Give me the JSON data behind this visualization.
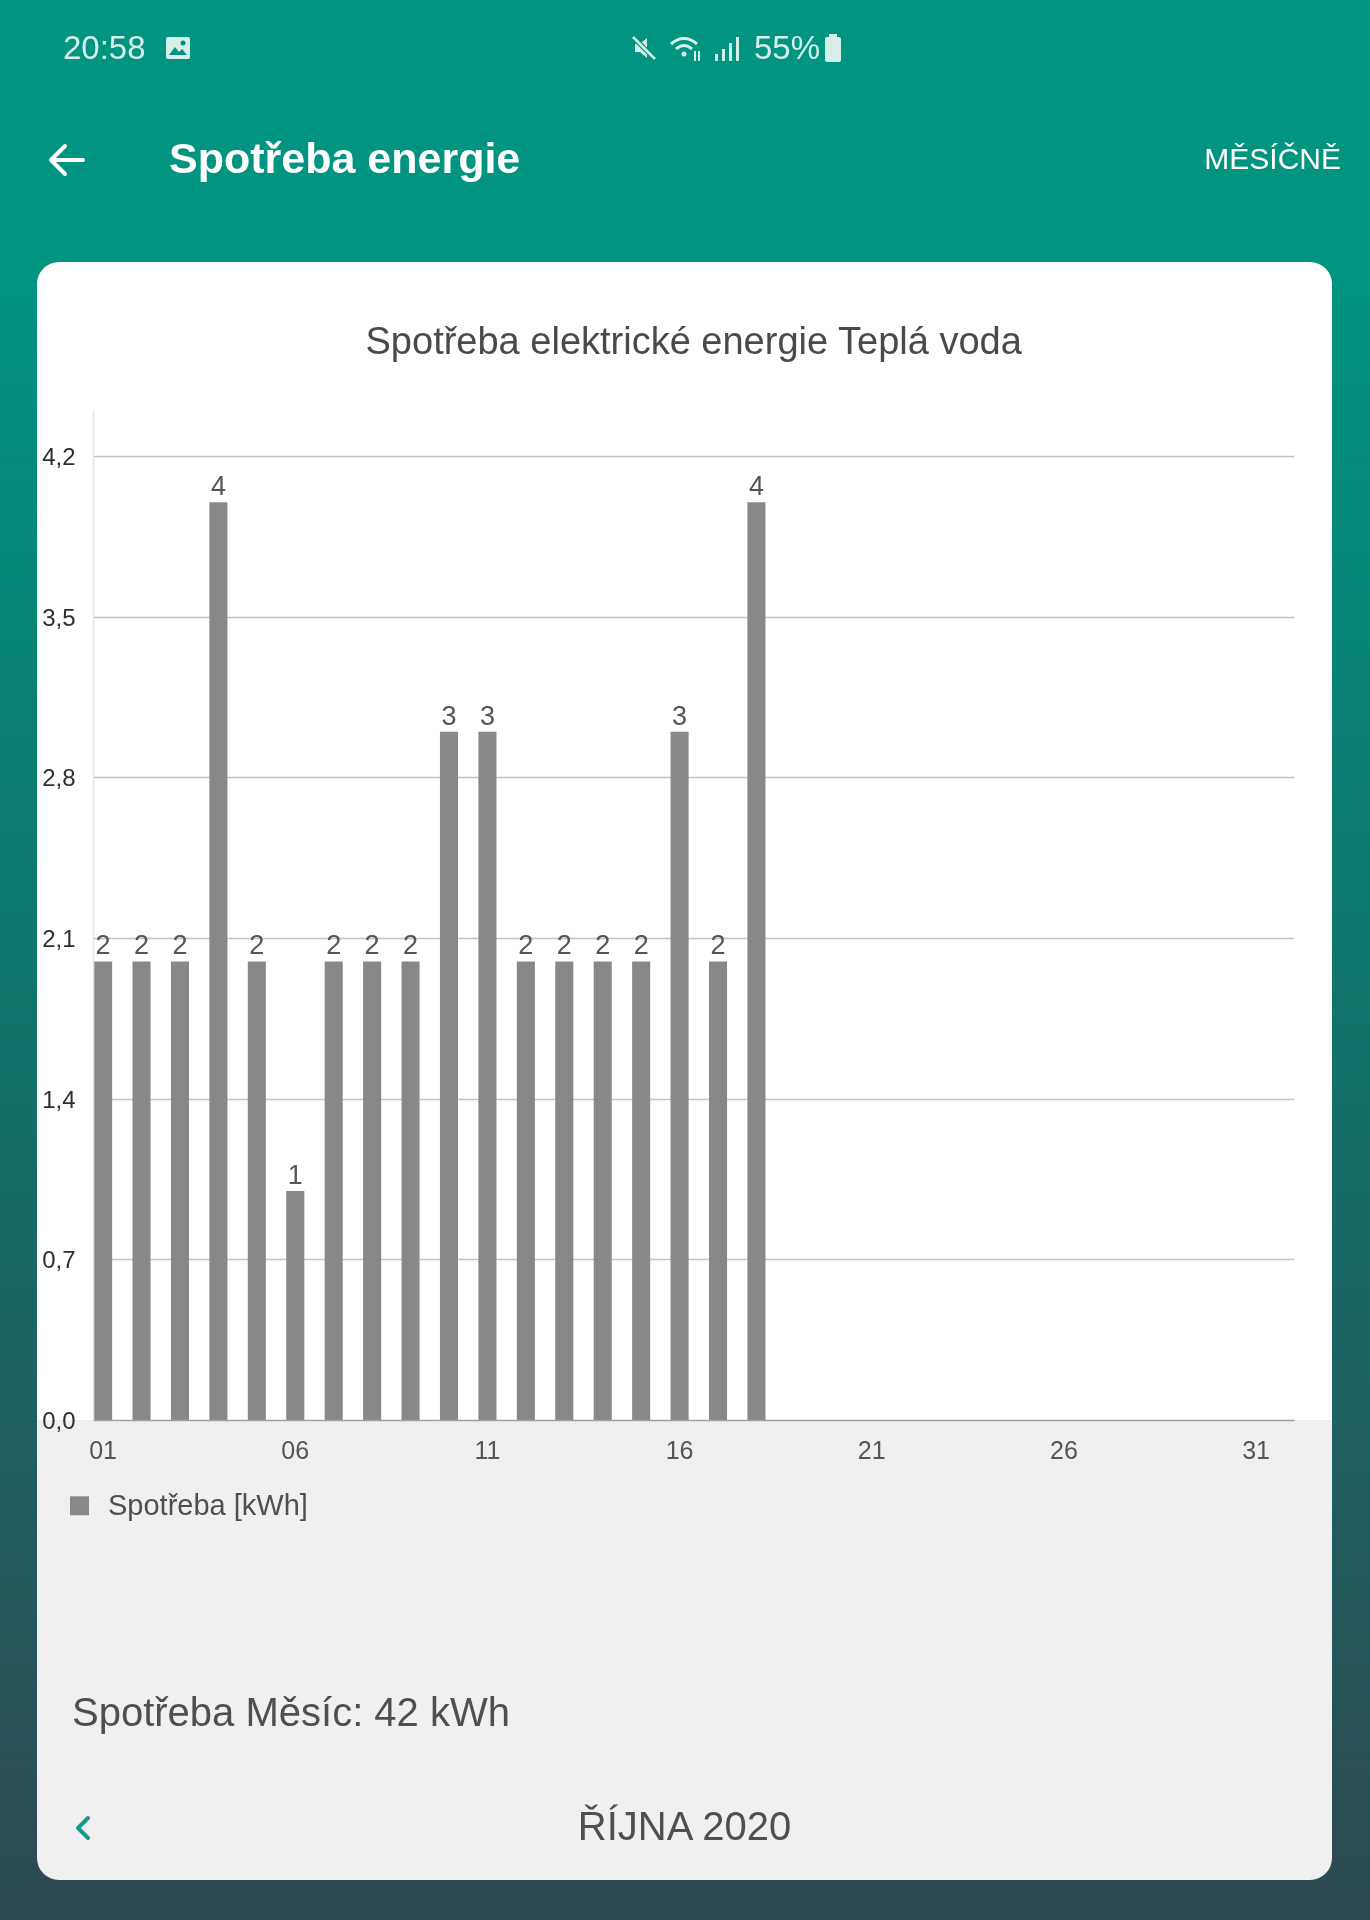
{
  "chart_data": {
    "type": "bar",
    "title": "Spotřeba elektrické energie Teplá voda",
    "x": [
      1,
      2,
      3,
      4,
      5,
      6,
      7,
      8,
      9,
      10,
      11,
      12,
      13,
      14,
      15,
      16,
      17,
      18
    ],
    "series": [
      {
        "name": "Spotřeba [kWh]",
        "color": "#888888",
        "values": [
          2,
          2,
          2,
          4,
          2,
          1,
          2,
          2,
          2,
          3,
          3,
          2,
          2,
          2,
          2,
          3,
          2,
          4
        ]
      }
    ],
    "xlim": [
      0.75,
      32
    ],
    "xticks": [
      {
        "value": 1,
        "label": "01"
      },
      {
        "value": 6,
        "label": "06"
      },
      11,
      16,
      21,
      26,
      31
    ],
    "ylim": [
      0,
      4.4
    ],
    "yticks": [
      {
        "value": 0,
        "label": "0,0"
      },
      {
        "value": 0.7,
        "label": "0,7"
      },
      {
        "value": 1.4,
        "label": "1,4"
      },
      {
        "value": 2.1,
        "label": "2,1"
      },
      {
        "value": 2.8,
        "label": "2,8"
      },
      {
        "value": 3.5,
        "label": "3,5"
      },
      {
        "value": 4.2,
        "label": "4,2"
      }
    ],
    "grid": "y",
    "legend": "bottom left",
    "data_labels": true,
    "annotations": [
      "20:58",
      "55%",
      "Spotřeba energie",
      "MĚSÍČNĚ",
      "Spotřeba Měsíc: 42 kWh",
      "ŘÍJNA 2020"
    ]
  }
}
